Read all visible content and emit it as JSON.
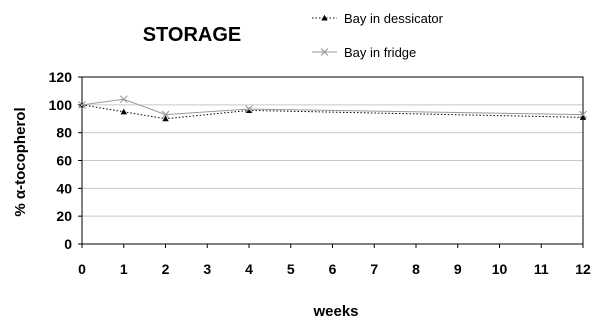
{
  "chart_data": {
    "type": "line",
    "title": "STORAGE",
    "xlabel": "weeks",
    "ylabel": "% α-tocopherol",
    "x": [
      0,
      1,
      2,
      3,
      4,
      5,
      6,
      7,
      8,
      9,
      10,
      11,
      12
    ],
    "xlim": [
      0,
      12
    ],
    "ylim": [
      0,
      120
    ],
    "yticks": [
      0,
      20,
      40,
      60,
      80,
      100,
      120
    ],
    "grid": "horizontal",
    "legend_position": "top-right",
    "series": [
      {
        "name": "Bay in dessicator",
        "marker": "triangle",
        "line_style": "dotted",
        "color": "#000000",
        "points": [
          [
            0,
            100
          ],
          [
            1,
            95
          ],
          [
            2,
            90
          ],
          [
            4,
            96
          ],
          [
            12,
            91
          ]
        ]
      },
      {
        "name": "Bay in fridge",
        "marker": "x",
        "line_style": "solid",
        "color": "#9a9a9a",
        "points": [
          [
            0,
            100
          ],
          [
            1,
            104
          ],
          [
            2,
            93
          ],
          [
            4,
            97
          ],
          [
            12,
            93
          ]
        ]
      }
    ]
  }
}
